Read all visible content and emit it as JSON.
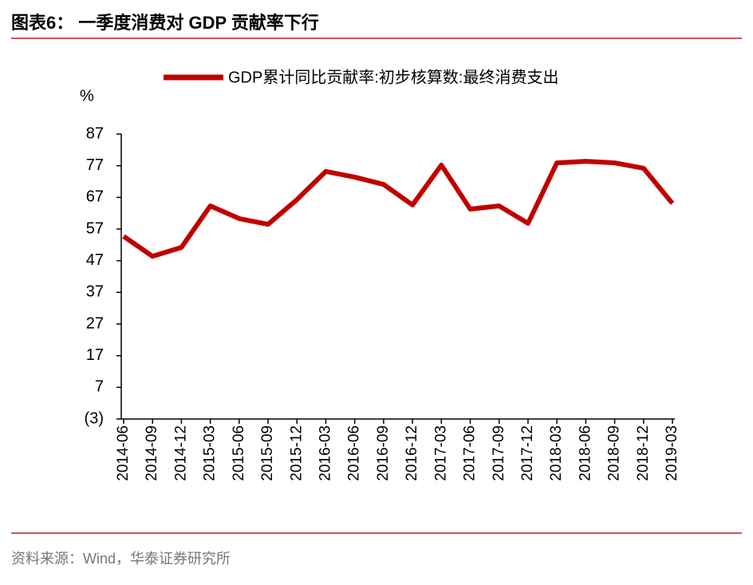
{
  "chart_data": {
    "type": "line",
    "title": "图表6： 一季度消费对 GDP 贡献率下行",
    "y_unit": "%",
    "source": "资料来源：Wind，华泰证券研究所",
    "categories": [
      "2014-06",
      "2014-09",
      "2014-12",
      "2015-03",
      "2015-06",
      "2015-09",
      "2015-12",
      "2016-03",
      "2016-06",
      "2016-09",
      "2016-12",
      "2017-03",
      "2017-06",
      "2017-09",
      "2017-12",
      "2018-03",
      "2018-06",
      "2018-09",
      "2018-12",
      "2019-03"
    ],
    "series": [
      {
        "name": "GDP累计同比贡献率:初步核算数:最终消费支出",
        "color": "#c00000",
        "values": [
          54.7,
          48.4,
          51.2,
          64.3,
          60.3,
          58.5,
          66.3,
          75.2,
          73.4,
          71.1,
          64.6,
          77.2,
          63.3,
          64.3,
          58.8,
          77.9,
          78.4,
          77.9,
          76.2,
          65.1
        ]
      }
    ],
    "ylim": [
      -3,
      87
    ],
    "yticks": [
      {
        "value": -3,
        "label": "(3)"
      },
      7,
      17,
      27,
      37,
      47,
      57,
      67,
      77,
      87
    ],
    "grid": false
  }
}
